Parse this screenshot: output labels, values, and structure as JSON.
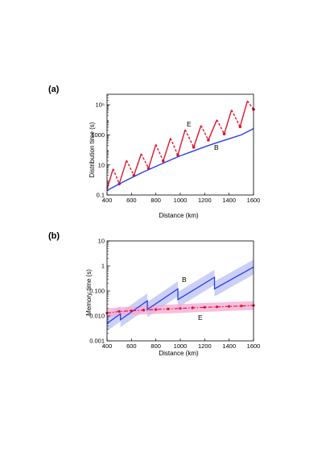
{
  "colors": {
    "red": "#e3122b",
    "blue": "#2a3ee6",
    "blue_band": "#b9c0f5",
    "red_band": "#f3a9d6"
  },
  "chart_data": [
    {
      "panel": "(a)",
      "type": "line",
      "title": "",
      "xlabel": "Distance (km)",
      "ylabel": "Distribution time (s)",
      "xlim": [
        400,
        1600
      ],
      "ylim": [
        0.1,
        500000
      ],
      "yscale": "log",
      "xticks": [
        400,
        600,
        800,
        1000,
        1200,
        1400,
        1600
      ],
      "xtick_labels": [
        "400",
        "600",
        "800",
        "1000",
        "1200",
        "1400",
        "1600"
      ],
      "yticks": [
        0.1,
        10,
        1000,
        100000
      ],
      "ytick_labels": [
        "0.1",
        "10",
        "1000",
        "10⁵"
      ],
      "grid": false,
      "legend": "none",
      "series": [
        {
          "name": "E",
          "color": "red",
          "style": "solid-dashed sawtooth",
          "x": [
            400,
            450,
            500,
            560,
            620,
            680,
            740,
            800,
            860,
            920,
            980,
            1040,
            1110,
            1170,
            1230,
            1300,
            1360,
            1420,
            1490,
            1550,
            1600
          ],
          "y": [
            0.25,
            5.5,
            0.55,
            20,
            2.0,
            55,
            6.0,
            230,
            18,
            600,
            45,
            2200,
            150,
            4200,
            450,
            10000,
            1150,
            45000,
            3500,
            180000,
            50000
          ]
        },
        {
          "name": "B",
          "color": "blue",
          "style": "solid",
          "x": [
            400,
            500,
            600,
            700,
            800,
            900,
            1000,
            1100,
            1200,
            1300,
            1400,
            1500,
            1600
          ],
          "y": [
            0.2,
            0.55,
            1.4,
            3.5,
            8,
            18,
            40,
            80,
            160,
            300,
            550,
            1000,
            2600
          ]
        }
      ]
    },
    {
      "panel": "(b)",
      "type": "line",
      "title": "",
      "xlabel": "Distance (km)",
      "ylabel": "Memory time (s)",
      "xlim": [
        400,
        1600
      ],
      "ylim": [
        0.001,
        10
      ],
      "yscale": "log",
      "xticks": [
        400,
        600,
        800,
        1000,
        1200,
        1400,
        1600
      ],
      "xtick_labels": [
        "400",
        "600",
        "800",
        "1000",
        "1200",
        "1400",
        "1600"
      ],
      "yticks": [
        0.001,
        0.01,
        0.1,
        1,
        10
      ],
      "ytick_labels": [
        "0.001",
        "0.010",
        "0.100",
        "1",
        "10"
      ],
      "grid": false,
      "legend": "none",
      "series": [
        {
          "name": "B",
          "color": "blue",
          "style": "solid with shaded band",
          "x": [
            400,
            510,
            510,
            730,
            730,
            980,
            980,
            1280,
            1280,
            1600
          ],
          "y": [
            0.005,
            0.012,
            0.007,
            0.04,
            0.018,
            0.12,
            0.045,
            0.35,
            0.12,
            0.9
          ],
          "band_lower": [
            0.0025,
            0.006,
            0.0035,
            0.02,
            0.009,
            0.06,
            0.022,
            0.17,
            0.06,
            0.45
          ],
          "band_upper": [
            0.01,
            0.024,
            0.014,
            0.08,
            0.036,
            0.24,
            0.09,
            0.7,
            0.24,
            1.8
          ]
        },
        {
          "name": "E",
          "color": "red",
          "style": "dash-dot with markers and shaded band",
          "x": [
            400,
            500,
            600,
            700,
            800,
            900,
            1000,
            1100,
            1200,
            1300,
            1400,
            1500,
            1600
          ],
          "y": [
            0.013,
            0.015,
            0.016,
            0.017,
            0.018,
            0.019,
            0.02,
            0.021,
            0.022,
            0.023,
            0.024,
            0.025,
            0.026
          ],
          "band_lower": [
            0.0085,
            0.01,
            0.0105,
            0.0115,
            0.012,
            0.0125,
            0.013,
            0.014,
            0.0145,
            0.015,
            0.016,
            0.0165,
            0.017
          ],
          "band_upper": [
            0.02,
            0.022,
            0.0235,
            0.025,
            0.027,
            0.028,
            0.03,
            0.031,
            0.033,
            0.034,
            0.036,
            0.037,
            0.039
          ]
        }
      ]
    }
  ]
}
